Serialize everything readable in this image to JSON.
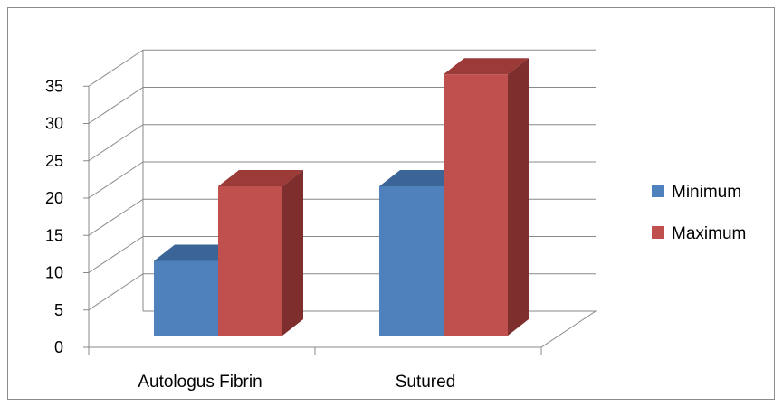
{
  "chart_data": {
    "type": "bar",
    "categories": [
      "Autologus Fibrin",
      "Sutured"
    ],
    "series": [
      {
        "name": "Minimum",
        "values": [
          10,
          20
        ],
        "color": "#4f81bd",
        "top_color": "#3a6596",
        "side_color": "#2e5182"
      },
      {
        "name": "Maximum",
        "values": [
          20,
          35
        ],
        "color": "#c0504d",
        "top_color": "#9b3a37",
        "side_color": "#7e2f2d"
      }
    ],
    "y_ticks": [
      "0",
      "5",
      "10",
      "15",
      "20",
      "25",
      "30",
      "35"
    ],
    "ylim": [
      0,
      35
    ],
    "grid": true,
    "legend_position": "right",
    "style": "3d-clustered-column"
  }
}
